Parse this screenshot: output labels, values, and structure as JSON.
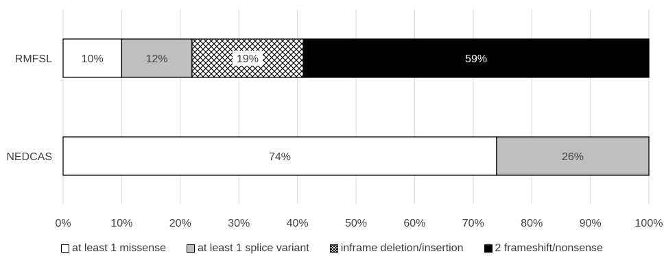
{
  "chart_data": {
    "type": "bar",
    "orientation": "horizontal",
    "stacked": true,
    "title": "",
    "xlabel": "",
    "ylabel": "",
    "categories": [
      "RMFSL",
      "NEDCAS"
    ],
    "xlim": [
      0,
      100
    ],
    "x_ticks": [
      "0%",
      "10%",
      "20%",
      "30%",
      "40%",
      "50%",
      "60%",
      "70%",
      "80%",
      "90%",
      "100%"
    ],
    "grid": true,
    "legend_position": "bottom",
    "series": [
      {
        "name": "at least 1 missense",
        "values": [
          10,
          74
        ],
        "labels": [
          "10%",
          "74%"
        ],
        "fill": "white",
        "color": "#ffffff",
        "label_color": "#404040"
      },
      {
        "name": "at least 1 splice variant",
        "values": [
          12,
          26
        ],
        "labels": [
          "12%",
          "26%"
        ],
        "fill": "solid",
        "color": "#bfbfbf",
        "label_color": "#404040"
      },
      {
        "name": "inframe deletion/insertion",
        "values": [
          19,
          0
        ],
        "labels": [
          "19%",
          ""
        ],
        "fill": "crosshatch",
        "color": "#ffffff",
        "label_color": "#404040"
      },
      {
        "name": "2 frameshift/nonsense",
        "values": [
          59,
          0
        ],
        "labels": [
          "59%",
          ""
        ],
        "fill": "solid",
        "color": "#000000",
        "label_color": "#ffffff"
      }
    ]
  }
}
